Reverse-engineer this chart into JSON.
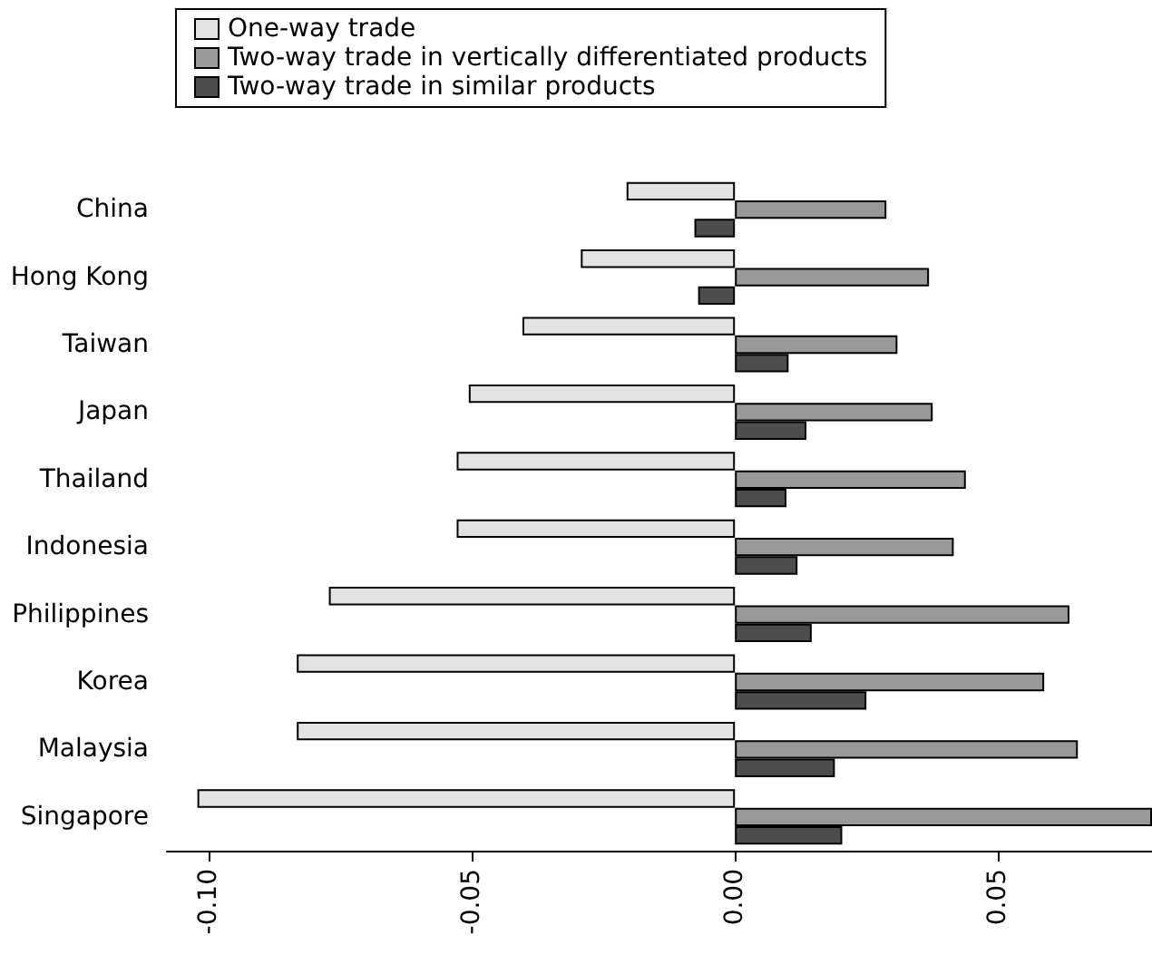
{
  "chart_data": {
    "type": "bar",
    "orientation": "horizontal",
    "categories": [
      "China",
      "Hong Kong",
      "Taiwan",
      "Japan",
      "Thailand",
      "Indonesia",
      "Philippines",
      "Korea",
      "Malaysia",
      "Singapore"
    ],
    "series": [
      {
        "name": "One-way trade",
        "color": "#e3e3e3",
        "values": [
          -0.0206,
          -0.0293,
          -0.0404,
          -0.0506,
          -0.0529,
          -0.0529,
          -0.0772,
          -0.0833,
          -0.0833,
          -0.1022
        ]
      },
      {
        "name": "Two-way trade in vertically differentiated products",
        "color": "#999999",
        "values": [
          0.0288,
          0.0369,
          0.0309,
          0.0376,
          0.0439,
          0.0416,
          0.0636,
          0.0588,
          0.0652,
          0.0793
        ]
      },
      {
        "name": "Two-way trade in similar products",
        "color": "#4d4d4d",
        "values": [
          -0.0077,
          -0.007,
          0.0102,
          0.0136,
          0.0098,
          0.0119,
          0.0146,
          0.025,
          0.019,
          0.0204
        ]
      }
    ],
    "xlim": [
      -0.108,
      0.0793
    ],
    "xticks": [
      {
        "value": -0.1,
        "label": "-0.10"
      },
      {
        "value": -0.05,
        "label": "-0.05"
      },
      {
        "value": 0,
        "label": "0.00"
      },
      {
        "value": 0.05,
        "label": "0.05"
      }
    ],
    "legend": "top left",
    "grid": false
  }
}
